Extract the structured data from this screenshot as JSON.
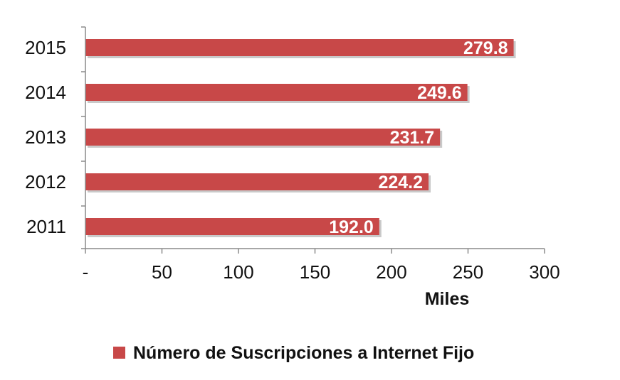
{
  "chart_data": {
    "type": "bar",
    "orientation": "horizontal",
    "categories": [
      "2015",
      "2014",
      "2013",
      "2012",
      "2011"
    ],
    "series": [
      {
        "name": "Número de Suscripciones a Internet Fijo",
        "values": [
          279.8,
          249.6,
          231.7,
          224.2,
          192.0
        ],
        "labels": [
          "279.8",
          "249.6",
          "231.7",
          "224.2",
          "192.0"
        ],
        "color": "#c84848"
      }
    ],
    "xlabel": "Miles",
    "ylabel": "",
    "xlim": [
      0,
      300
    ],
    "xticks": [
      0,
      50,
      100,
      150,
      200,
      250,
      300
    ],
    "xtick_labels": [
      "-",
      "50",
      "100",
      "150",
      "200",
      "250",
      "300"
    ],
    "grid": false,
    "legend_position": "bottom"
  }
}
